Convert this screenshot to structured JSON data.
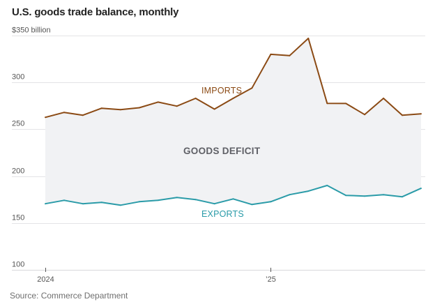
{
  "chart_data": {
    "type": "line",
    "title": "U.S. goods trade balance, monthly",
    "ylabel": "",
    "xlabel": "",
    "unit_label": "$350 billion",
    "ylim": [
      100,
      350
    ],
    "yticks": [
      100,
      150,
      200,
      250,
      300,
      350
    ],
    "ytick_labels": [
      "100",
      "150",
      "200",
      "250",
      "300",
      "$350 billion"
    ],
    "x": [
      "2024-01",
      "2024-02",
      "2024-03",
      "2024-04",
      "2024-05",
      "2024-06",
      "2024-07",
      "2024-08",
      "2024-09",
      "2024-10",
      "2024-11",
      "2024-12",
      "2025-01",
      "2025-02",
      "2025-03",
      "2025-04",
      "2025-05",
      "2025-06",
      "2025-07",
      "2025-08",
      "2025-09"
    ],
    "xticks": [
      {
        "index": 0,
        "label": "2024"
      },
      {
        "index": 12,
        "label": "’25"
      }
    ],
    "grid": true,
    "series": [
      {
        "name": "IMPORTS",
        "color": "#8b4a14",
        "values": [
          262.7,
          268,
          265,
          272.5,
          271,
          273,
          279,
          274.7,
          283,
          271.5,
          283,
          294,
          330,
          328.6,
          347,
          277.7,
          277.5,
          265.7,
          283,
          265,
          266.5
        ]
      },
      {
        "name": "EXPORTS",
        "color": "#2a9ba8",
        "values": [
          170.5,
          174.2,
          170.5,
          172,
          169,
          172.7,
          174.2,
          177.2,
          175,
          170.5,
          175.7,
          169.7,
          172.7,
          180.2,
          184,
          190,
          179.5,
          178.7,
          180.2,
          178,
          187
        ]
      }
    ],
    "fill_between": {
      "label": "GOODS DEFICIT",
      "color": "#f1f2f4",
      "label_color": "#5f6066"
    },
    "annotations": [
      {
        "text": "IMPORTS",
        "series": "IMPORTS"
      },
      {
        "text": "GOODS DEFICIT"
      },
      {
        "text": "EXPORTS",
        "series": "EXPORTS"
      }
    ],
    "source": "Source: Commerce Department"
  }
}
